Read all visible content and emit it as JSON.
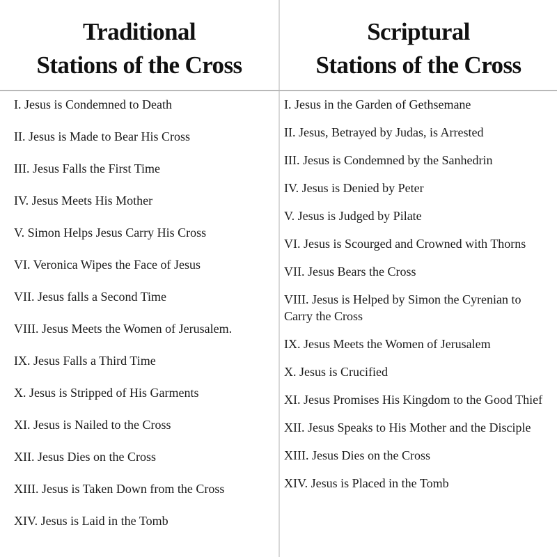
{
  "traditional": {
    "title_line1": "Traditional",
    "title_line2": "Stations of the Cross",
    "items": [
      "I. Jesus is Condemned to Death",
      "II. Jesus is Made to Bear His Cross",
      "III. Jesus Falls the First Time",
      "IV. Jesus Meets His Mother",
      "V. Simon Helps Jesus Carry His Cross",
      "VI. Veronica Wipes the Face of Jesus",
      "VII. Jesus falls a Second Time",
      "VIII. Jesus Meets the Women of Jerusalem.",
      "IX. Jesus Falls a Third Time",
      "X. Jesus is Stripped of His Garments",
      "XI. Jesus is Nailed to the Cross",
      "XII. Jesus Dies on the Cross",
      "XIII. Jesus is Taken Down from the Cross",
      "XIV. Jesus is Laid in the Tomb"
    ]
  },
  "scriptural": {
    "title_line1": "Scriptural",
    "title_line2": "Stations of the Cross",
    "items": [
      "I. Jesus in the Garden of Gethsemane",
      "II. Jesus, Betrayed by Judas, is Arrested",
      "III. Jesus is Condemned by the Sanhedrin",
      "IV. Jesus is Denied by Peter",
      "V. Jesus is Judged by Pilate",
      "VI. Jesus is Scourged and Crowned with Thorns",
      "VII. Jesus Bears the Cross",
      "VIII. Jesus is Helped by Simon the Cyrenian to Carry the Cross",
      "IX. Jesus Meets the Women of Jerusalem",
      "X. Jesus is Crucified",
      "XI. Jesus Promises His Kingdom to the Good Thief",
      "XII. Jesus Speaks to His Mother and the Disciple",
      "XIII. Jesus Dies on the Cross",
      "XIV. Jesus is Placed in the Tomb"
    ]
  }
}
